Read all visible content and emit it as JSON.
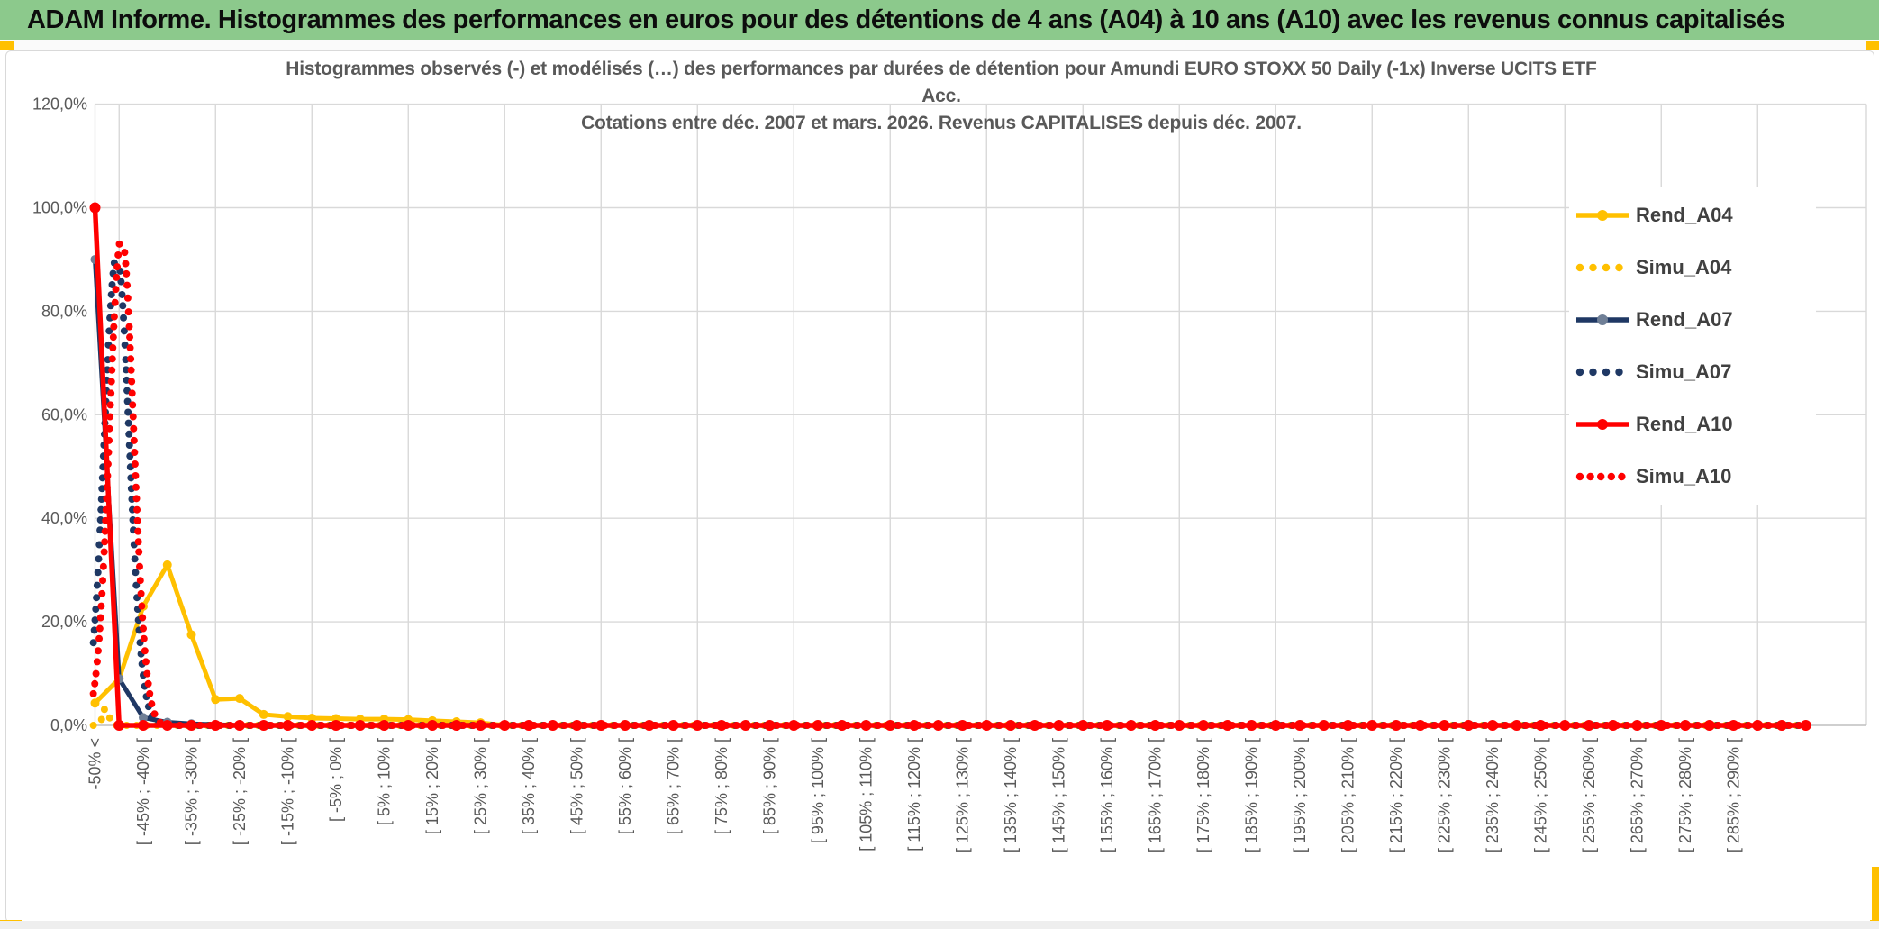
{
  "window": {
    "header_title": "ADAM Informe. Histogrammes des performances en euros pour des détentions de 4 ans (A04) à 10 ans (A10) avec les revenus connus capitalisés",
    "header_bg": "#8CC98C",
    "accent_color": "#FFC000"
  },
  "chart_data": {
    "type": "line",
    "title_lines": [
      "Histogrammes observés (-) et modélisés (…) des performances par durées de détention pour Amundi EURO STOXX 50 Daily (-1x) Inverse UCITS ETF",
      "Acc.",
      "Cotations entre déc. 2007 et mars. 2026. Revenus CAPITALISES depuis déc. 2007."
    ],
    "y_axis": {
      "tick_labels": [
        "120,0%",
        "100,0%",
        "80,0%",
        "60,0%",
        "40,0%",
        "20,0%",
        "0,0%"
      ],
      "min": 0,
      "max": 120,
      "step": 20,
      "grid": true
    },
    "x_axis": {
      "n_points": 72,
      "bin_width_pct": 5,
      "label_every_other_point": true,
      "labels": [
        "-50% <",
        "[ -45% ; -40% [",
        "[ -35% ; -30% [",
        "[ -25% ; -20% [",
        "[ -15% ; -10% [",
        "[ -5% ; 0% [",
        "[ 5% ; 10% [",
        "[ 15% ; 20% [",
        "[ 25% ; 30% [",
        "[ 35% ; 40% [",
        "[ 45% ; 50% [",
        "[ 55% ; 60% [",
        "[ 65% ; 70% [",
        "[ 75% ; 80% [",
        "[ 85% ; 90% [",
        "[ 95% ; 100% [",
        "[ 105% ; 110% [",
        "[ 115% ; 120% [",
        "[ 125% ; 130% [",
        "[ 135% ; 140% [",
        "[ 145% ; 150% [",
        "[ 155% ; 160% [",
        "[ 165% ; 170% [",
        "[ 175% ; 180% [",
        "[ 185% ; 190% [",
        "[ 195% ; 200% [",
        "[ 205% ; 210% [",
        "[ 215% ; 220% [",
        "[ 225% ; 230% [",
        "[ 235% ; 240% [",
        "[ 245% ; 250% [",
        "[ 255% ; 260% [",
        "[ 265% ; 270% [",
        "[ 275% ; 280% [",
        "[ 285% ; 290% ["
      ]
    },
    "legend_position": "upper-right",
    "series": [
      {
        "name": "Rend_A04",
        "kind": "observed",
        "style": "solid",
        "color": "#FFC000",
        "marker_color": "#FFC000",
        "legend_dots": 0,
        "values_pct": [
          4.3,
          9,
          23,
          31,
          17.5,
          5,
          5.2,
          2.1,
          1.7,
          1.4,
          1.3,
          1.2,
          1.2,
          1.1,
          0.9,
          0.7,
          0.5
        ],
        "values_padded_with_zeros_to_n_points": true
      },
      {
        "name": "Simu_A04",
        "kind": "modeled",
        "style": "dotted",
        "color": "#FFC000",
        "legend_dots": 4,
        "gaussian": {
          "center_idx": 0.45,
          "sigma_idx": 0.12,
          "peak_pct": 3.5
        },
        "note": "barely visible: only a few dots just above the 0% axis near the -50% bin"
      },
      {
        "name": "Rend_A07",
        "kind": "observed",
        "style": "solid",
        "color": "#1F3864",
        "marker_color": "#6F7F96",
        "legend_dots": 0,
        "values_pct": [
          90,
          9,
          1.5,
          0.6,
          0.3,
          0.15
        ],
        "values_padded_with_zeros_to_n_points": true
      },
      {
        "name": "Simu_A07",
        "kind": "modeled",
        "style": "dotted",
        "color": "#1F3864",
        "legend_dots": 4,
        "gaussian": {
          "center_idx": 0.9,
          "sigma_idx": 0.52,
          "peak_pct": 91
        }
      },
      {
        "name": "Rend_A10",
        "kind": "observed",
        "style": "solid",
        "color": "#FF0000",
        "marker_color": "#FF0000",
        "legend_dots": 0,
        "values_pct": [
          100
        ],
        "values_padded_with_zeros_to_n_points": true
      },
      {
        "name": "Simu_A10",
        "kind": "modeled",
        "style": "dotted",
        "color": "#FF0000",
        "legend_dots": 5,
        "gaussian": {
          "center_idx": 1.1,
          "sigma_idx": 0.5,
          "peak_pct": 94.5
        }
      }
    ],
    "colors": {
      "grid": "#d9d9d9",
      "axis": "#bfbfbf",
      "tick_text": "#595959",
      "title_text": "#595959",
      "legend_text": "#404040"
    }
  }
}
